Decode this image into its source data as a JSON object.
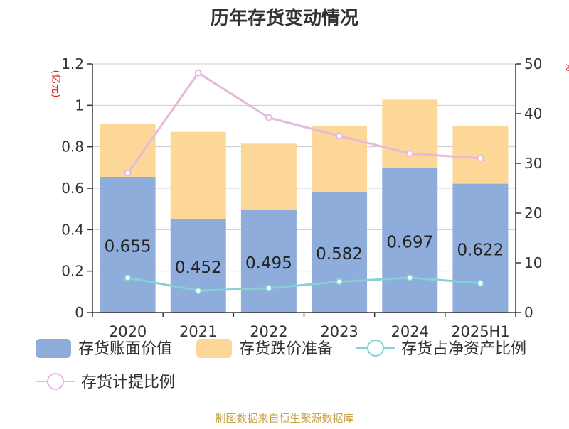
{
  "chart_data": {
    "type": "bar",
    "title": "历年存货变动情况",
    "categories": [
      "2020",
      "2021",
      "2022",
      "2023",
      "2024",
      "2025H1"
    ],
    "y_left": {
      "label": "(亿元)",
      "range": [
        0,
        1.2
      ],
      "ticks": [
        "0",
        "0.2",
        "0.4",
        "0.6",
        "0.8",
        "1",
        "1.2"
      ]
    },
    "y_right": {
      "label": "%",
      "range": [
        0,
        50
      ],
      "ticks": [
        "0",
        "10",
        "20",
        "30",
        "40",
        "50"
      ]
    },
    "series": [
      {
        "name": "存货账面价值",
        "type": "bar",
        "stack": "inventory",
        "axis": "left",
        "color": "#8eaddb",
        "values": [
          0.655,
          0.452,
          0.495,
          0.582,
          0.697,
          0.622
        ],
        "labels": [
          "0.655",
          "0.452",
          "0.495",
          "0.582",
          "0.697",
          "0.622"
        ]
      },
      {
        "name": "存货跌价准备",
        "type": "bar",
        "stack": "inventory",
        "axis": "left",
        "color": "#fdd797",
        "values": [
          0.255,
          0.42,
          0.32,
          0.32,
          0.33,
          0.28
        ]
      },
      {
        "name": "存货占净资产比例",
        "type": "line",
        "axis": "right",
        "color": "#86d0d6",
        "values": [
          7.0,
          4.4,
          4.9,
          6.2,
          7.0,
          5.9
        ]
      },
      {
        "name": "存货计提比例",
        "type": "line",
        "axis": "right",
        "color": "#e6b8dc",
        "values": [
          28.0,
          48.2,
          39.2,
          35.5,
          32.0,
          31.0
        ]
      }
    ],
    "grid": true,
    "legend_position": "bottom"
  },
  "footer": {
    "source": "制图数据来自恒生聚源数据库"
  }
}
